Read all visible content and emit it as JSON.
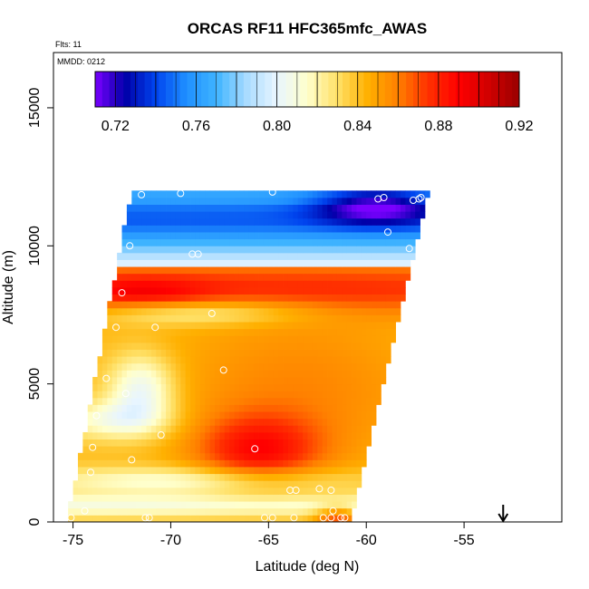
{
  "chart_data": {
    "type": "heatmap",
    "title": "ORCAS RF11 HFC365mfc_AWAS",
    "annotations": {
      "flights": "Flts: 11",
      "date": "MMDD: 0212"
    },
    "xlabel": "Latitude (deg N)",
    "ylabel": "Altitude (m)",
    "xlim": [
      -76,
      -50
    ],
    "ylim": [
      0,
      17000
    ],
    "xticks": [
      -75,
      -70,
      -65,
      -60,
      -55
    ],
    "yticks": [
      0,
      5000,
      10000,
      15000
    ],
    "grid": false,
    "colorbar": {
      "placement": "top-inside",
      "range": [
        0.71,
        0.92
      ],
      "ticks": [
        0.72,
        0.76,
        0.8,
        0.84,
        0.88,
        0.92
      ],
      "colors": [
        "#7a00ff",
        "#0000a8",
        "#0044ee",
        "#1f8fff",
        "#3fb4ff",
        "#a9dcff",
        "#e8f5ff",
        "#ffffcc",
        "#ffe066",
        "#ffb000",
        "#ff8000",
        "#ff3000",
        "#ff0000",
        "#d00000",
        "#9a0000"
      ]
    },
    "regions": [
      {
        "name": "upper-blue-band",
        "alt_range": [
          9500,
          12000
        ],
        "value": 0.76
      },
      {
        "name": "orange-band",
        "alt_range": [
          7500,
          9500
        ],
        "value": 0.87
      },
      {
        "name": "mid-yellow",
        "alt_range": [
          3000,
          7500
        ],
        "value": 0.85
      },
      {
        "name": "low-red-max",
        "lat": -65.5,
        "alt": 2700,
        "value": 0.89
      }
    ],
    "sample_points": [
      {
        "lat": -71.5,
        "alt": 11850
      },
      {
        "lat": -69.5,
        "alt": 11900
      },
      {
        "lat": -64.8,
        "alt": 11950
      },
      {
        "lat": -59.4,
        "alt": 11700
      },
      {
        "lat": -59.1,
        "alt": 11750
      },
      {
        "lat": -57.6,
        "alt": 11650
      },
      {
        "lat": -57.3,
        "alt": 11700
      },
      {
        "lat": -57.2,
        "alt": 11750
      },
      {
        "lat": -58.9,
        "alt": 10500
      },
      {
        "lat": -57.8,
        "alt": 9900
      },
      {
        "lat": -72.1,
        "alt": 10000
      },
      {
        "lat": -68.9,
        "alt": 9700
      },
      {
        "lat": -68.6,
        "alt": 9700
      },
      {
        "lat": -72.5,
        "alt": 8300
      },
      {
        "lat": -73.4,
        "alt": 8200
      },
      {
        "lat": -73.9,
        "alt": 7300
      },
      {
        "lat": -70.8,
        "alt": 7050
      },
      {
        "lat": -72.8,
        "alt": 7050
      },
      {
        "lat": -67.9,
        "alt": 7550
      },
      {
        "lat": -67.3,
        "alt": 5500
      },
      {
        "lat": -73.3,
        "alt": 5200
      },
      {
        "lat": -72.3,
        "alt": 4650
      },
      {
        "lat": -73.8,
        "alt": 3850
      },
      {
        "lat": -70.5,
        "alt": 3150
      },
      {
        "lat": -65.7,
        "alt": 2650
      },
      {
        "lat": -74.0,
        "alt": 2700
      },
      {
        "lat": -72.0,
        "alt": 2250
      },
      {
        "lat": -74.1,
        "alt": 1800
      },
      {
        "lat": -63.9,
        "alt": 1150
      },
      {
        "lat": -63.6,
        "alt": 1150
      },
      {
        "lat": -62.4,
        "alt": 1200
      },
      {
        "lat": -61.8,
        "alt": 1150
      },
      {
        "lat": -74.4,
        "alt": 400
      },
      {
        "lat": -75.1,
        "alt": 150
      },
      {
        "lat": -71.3,
        "alt": 150
      },
      {
        "lat": -71.1,
        "alt": 150
      },
      {
        "lat": -65.2,
        "alt": 150
      },
      {
        "lat": -64.8,
        "alt": 150
      },
      {
        "lat": -63.7,
        "alt": 150
      },
      {
        "lat": -62.2,
        "alt": 150
      },
      {
        "lat": -61.8,
        "alt": 150
      },
      {
        "lat": -61.3,
        "alt": 150
      },
      {
        "lat": -61.1,
        "alt": 150
      },
      {
        "lat": -61.7,
        "alt": 400
      }
    ],
    "marker": {
      "type": "down-arrow",
      "lat": -53.0
    }
  }
}
